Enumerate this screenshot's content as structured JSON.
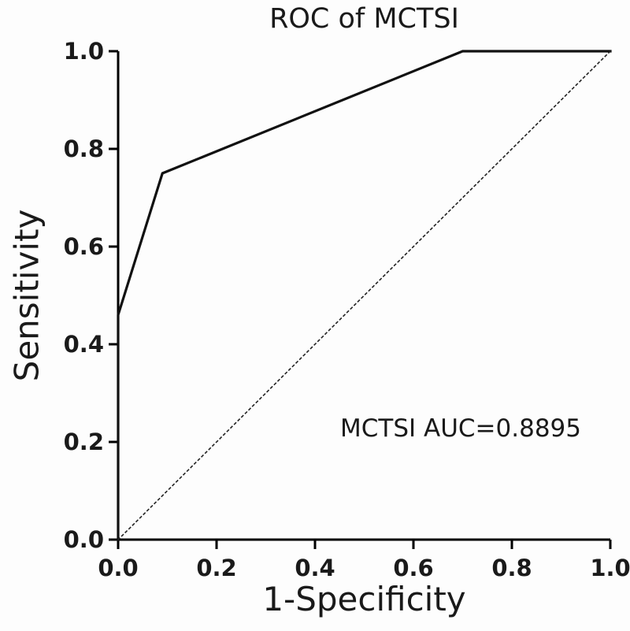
{
  "figure": {
    "background": "#fdfdfd"
  },
  "chart_data": {
    "type": "line",
    "title": "ROC of MCTSI",
    "xlabel": "1-Specificity",
    "ylabel": "Sensitivity",
    "xlim": [
      0.0,
      1.0
    ],
    "ylim": [
      0.0,
      1.0
    ],
    "grid": false,
    "legend": "none",
    "axis_color": "#000000",
    "text_color": "#1a1a1a",
    "xticks": [
      {
        "value": 0.0,
        "label": "0.0"
      },
      {
        "value": 0.2,
        "label": "0.2"
      },
      {
        "value": 0.4,
        "label": "0.4"
      },
      {
        "value": 0.6,
        "label": "0.6"
      },
      {
        "value": 0.8,
        "label": "0.8"
      },
      {
        "value": 1.0,
        "label": "1.0"
      }
    ],
    "yticks": [
      {
        "value": 0.0,
        "label": "0.0"
      },
      {
        "value": 0.2,
        "label": "0.2"
      },
      {
        "value": 0.4,
        "label": "0.4"
      },
      {
        "value": 0.6,
        "label": "0.6"
      },
      {
        "value": 0.8,
        "label": "0.8"
      },
      {
        "value": 1.0,
        "label": "1.0"
      }
    ],
    "series": [
      {
        "name": "MCTSI ROC curve",
        "style": "solid",
        "color": "#111111",
        "width": 3.2,
        "points": [
          [
            0.0,
            0.0
          ],
          [
            0.0,
            0.46
          ],
          [
            0.09,
            0.75
          ],
          [
            0.7,
            1.0
          ],
          [
            1.0,
            1.0
          ]
        ]
      },
      {
        "name": "Reference diagonal",
        "style": "dotted",
        "color": "#222222",
        "width": 1.6,
        "points": [
          [
            0.0,
            0.0
          ],
          [
            1.0,
            1.0
          ]
        ]
      }
    ],
    "annotation": {
      "text": "MCTSI AUC=0.8895",
      "x": 0.696,
      "y": 0.229
    }
  }
}
